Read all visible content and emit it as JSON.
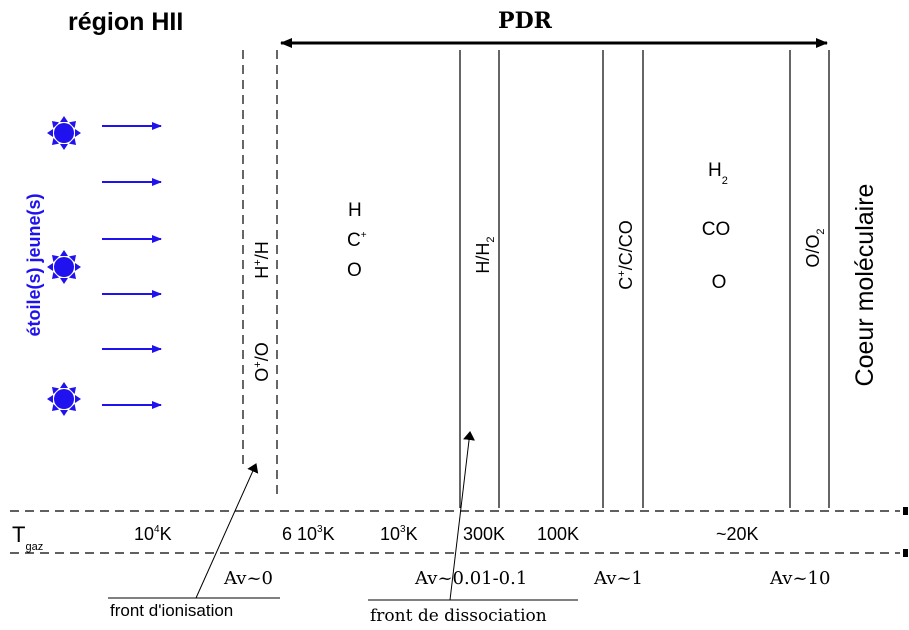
{
  "header": {
    "region_hii": "région HII",
    "pdr": "PDR"
  },
  "stars_label": "étoile(s) jeune(s)",
  "zones": {
    "h_ion": {
      "base": "H",
      "sup": "+",
      "tail": "/H"
    },
    "o_ion": {
      "base": "O",
      "sup": "+",
      "tail": "/O"
    },
    "atomic": {
      "h": "H",
      "c_base": "C",
      "c_sup": "+",
      "o": "O"
    },
    "h_h2": {
      "base": "H/H",
      "sub": "2"
    },
    "carbon": {
      "base": "C",
      "sup": "+",
      "tail": "/C/CO"
    },
    "molecular": {
      "h2_base": "H",
      "h2_sub": "2",
      "co": "CO",
      "o": "O"
    },
    "o_o2": {
      "base": "O/O",
      "sub": "2"
    },
    "core": "Coeur moléculaire"
  },
  "temperature": {
    "label_base": "T",
    "label_sub": "gaz",
    "t1": {
      "base": "10",
      "sup": "4",
      "unit": "K"
    },
    "t2": {
      "pre": "6 10",
      "sup": "3",
      "unit": "K"
    },
    "t3": {
      "base": "10",
      "sup": "3",
      "unit": "K"
    },
    "t4": "300K",
    "t5": "100K",
    "t6": "~20K"
  },
  "extinction": {
    "a1": "Av~0",
    "a2": "Av~0.01-0.1",
    "a3": "Av~1",
    "a4": "Av~10"
  },
  "fronts": {
    "ionisation": "front d'ionisation",
    "dissociation": "front de dissociation"
  },
  "colors": {
    "star": "#1f12ee",
    "arrow": "#1f12ee",
    "label_blue": "#1f12ee",
    "ink": "#000000"
  },
  "icons": [
    "star-icon",
    "arrow-right-icon"
  ]
}
